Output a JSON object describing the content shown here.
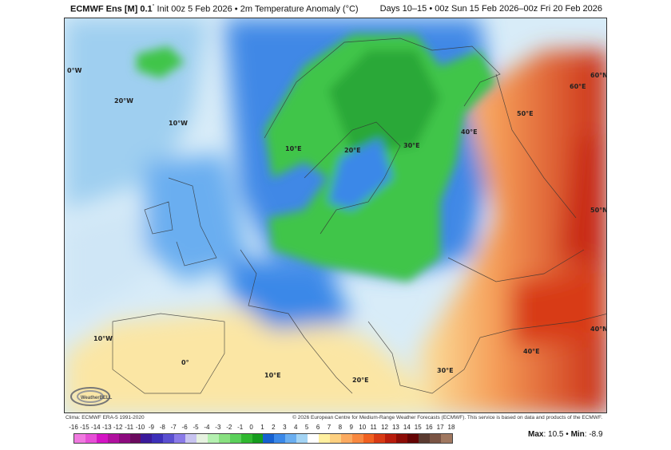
{
  "header": {
    "model": "ECMWF Ens [M] 0.1",
    "degree": "°",
    "init": "Init 00z 5 Feb 2026",
    "separator": "•",
    "variable": "2m Temperature Anomaly (°C)",
    "period": "Days 10–15 • 00z Sun 15 Feb 2026–00z Fri 20 Feb 2026"
  },
  "map": {
    "labels": [
      "0°W",
      "20°W",
      "10°W",
      "10°E",
      "20°E",
      "30°E",
      "40°E",
      "50°E",
      "60°E",
      "60°N",
      "50°N",
      "10°W",
      "0°",
      "10°E",
      "20°E",
      "30°E",
      "40°E",
      "40°N"
    ],
    "logo": "WeatherBELL",
    "colors": {
      "ocean_neutral": "#dbeef8",
      "cold_blue": "#3b7de0",
      "green": "#3fc54a",
      "warm_yellow": "#fbe6a4",
      "warm_orange": "#f08a4a",
      "hot_red": "#c92a14"
    }
  },
  "footer": {
    "clima": "Clima: ECMWF ERA-5 1991-2020",
    "copyright": "© 2026 European Centre for Medium-Range Weather Forecasts (ECMWF). This service is based on data and products of the ECMWF."
  },
  "colorbar": {
    "ticks": [
      "-16",
      "-15",
      "-14",
      "-13",
      "-12",
      "-11",
      "-10",
      "-9",
      "-8",
      "-7",
      "-6",
      "-5",
      "-4",
      "-3",
      "-2",
      "-1",
      "0",
      "1",
      "2",
      "3",
      "4",
      "5",
      "6",
      "7",
      "8",
      "9",
      "10",
      "11",
      "12",
      "13",
      "14",
      "15",
      "16",
      "17",
      "18"
    ],
    "colors": [
      "#f07ae0",
      "#e64fd6",
      "#d414c4",
      "#b0109e",
      "#8c0a7e",
      "#6a0a5e",
      "#3a1a9a",
      "#3c2fb8",
      "#5a4fd0",
      "#8a7ae8",
      "#c8c4f0",
      "#e6f2e0",
      "#b4f0b0",
      "#88e080",
      "#5ad05a",
      "#30b830",
      "#159c1e",
      "#1560d0",
      "#3a88e8",
      "#6aaef0",
      "#a4d4f4",
      "#ffffff",
      "#fff0a0",
      "#fdd080",
      "#fbaa60",
      "#f88840",
      "#f06020",
      "#d83a14",
      "#b81c0c",
      "#8c0c06",
      "#640404",
      "#5a3a30",
      "#7a5444",
      "#a07860"
    ],
    "unit_hidden": ""
  },
  "stats": {
    "max_label": "Max",
    "max": "10.5",
    "sep": "•",
    "min_label": "Min",
    "min": "-8.9"
  }
}
